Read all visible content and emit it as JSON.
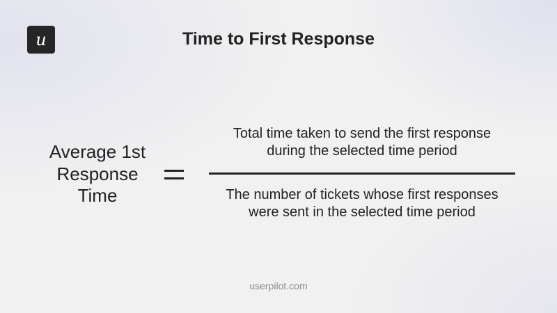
{
  "logo": {
    "glyph": "u",
    "icon": "userpilot-logo"
  },
  "title": "Time to First Response",
  "formula": {
    "lhs": [
      "Average 1st",
      "Response",
      "Time"
    ],
    "operator": "=",
    "numerator": [
      "Total time taken to send the first response",
      "during the selected time period"
    ],
    "denominator": [
      "The number of tickets whose first responses",
      "were sent in the selected time period"
    ]
  },
  "footer": "userpilot.com"
}
